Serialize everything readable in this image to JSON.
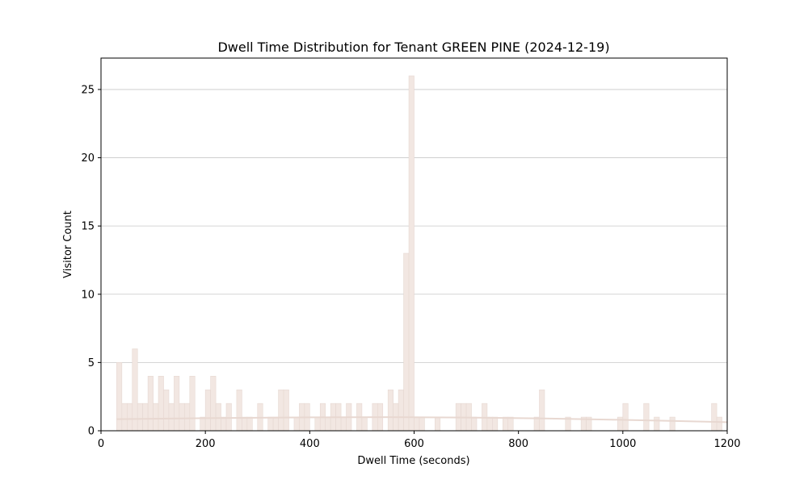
{
  "chart_data": {
    "type": "bar",
    "title": "Dwell Time Distribution for Tenant GREEN PINE (2024-12-19)",
    "xlabel": "Dwell Time (seconds)",
    "ylabel": "Visitor Count",
    "xlim": [
      0,
      1200
    ],
    "ylim": [
      0,
      27.3
    ],
    "xticks": [
      0,
      200,
      400,
      600,
      800,
      1000,
      1200
    ],
    "yticks": [
      0,
      5,
      10,
      15,
      20,
      25
    ],
    "grid": "horizontal",
    "bin_width": 10,
    "bar_color": "#f2e7e2",
    "bar_edge_color": "#e6d8d2",
    "trend_color": "#e8d8d1",
    "grid_color": "#c8c8c8",
    "bins": [
      {
        "x": 30,
        "y": 5
      },
      {
        "x": 40,
        "y": 2
      },
      {
        "x": 50,
        "y": 2
      },
      {
        "x": 60,
        "y": 6
      },
      {
        "x": 70,
        "y": 2
      },
      {
        "x": 80,
        "y": 2
      },
      {
        "x": 90,
        "y": 4
      },
      {
        "x": 100,
        "y": 2
      },
      {
        "x": 110,
        "y": 4
      },
      {
        "x": 120,
        "y": 3
      },
      {
        "x": 130,
        "y": 2
      },
      {
        "x": 140,
        "y": 4
      },
      {
        "x": 150,
        "y": 2
      },
      {
        "x": 160,
        "y": 2
      },
      {
        "x": 170,
        "y": 4
      },
      {
        "x": 190,
        "y": 1
      },
      {
        "x": 200,
        "y": 3
      },
      {
        "x": 210,
        "y": 4
      },
      {
        "x": 220,
        "y": 2
      },
      {
        "x": 230,
        "y": 1
      },
      {
        "x": 240,
        "y": 2
      },
      {
        "x": 260,
        "y": 3
      },
      {
        "x": 270,
        "y": 1
      },
      {
        "x": 280,
        "y": 1
      },
      {
        "x": 300,
        "y": 2
      },
      {
        "x": 320,
        "y": 1
      },
      {
        "x": 330,
        "y": 1
      },
      {
        "x": 340,
        "y": 3
      },
      {
        "x": 350,
        "y": 3
      },
      {
        "x": 370,
        "y": 1
      },
      {
        "x": 380,
        "y": 2
      },
      {
        "x": 390,
        "y": 2
      },
      {
        "x": 410,
        "y": 1
      },
      {
        "x": 420,
        "y": 2
      },
      {
        "x": 430,
        "y": 1
      },
      {
        "x": 440,
        "y": 2
      },
      {
        "x": 450,
        "y": 2
      },
      {
        "x": 460,
        "y": 1
      },
      {
        "x": 470,
        "y": 2
      },
      {
        "x": 490,
        "y": 2
      },
      {
        "x": 500,
        "y": 1
      },
      {
        "x": 520,
        "y": 2
      },
      {
        "x": 530,
        "y": 2
      },
      {
        "x": 550,
        "y": 3
      },
      {
        "x": 560,
        "y": 2
      },
      {
        "x": 570,
        "y": 3
      },
      {
        "x": 580,
        "y": 13
      },
      {
        "x": 590,
        "y": 26
      },
      {
        "x": 600,
        "y": 1
      },
      {
        "x": 610,
        "y": 1
      },
      {
        "x": 640,
        "y": 1
      },
      {
        "x": 680,
        "y": 2
      },
      {
        "x": 690,
        "y": 2
      },
      {
        "x": 700,
        "y": 2
      },
      {
        "x": 710,
        "y": 1
      },
      {
        "x": 730,
        "y": 2
      },
      {
        "x": 740,
        "y": 1
      },
      {
        "x": 750,
        "y": 1
      },
      {
        "x": 770,
        "y": 1
      },
      {
        "x": 780,
        "y": 1
      },
      {
        "x": 830,
        "y": 1
      },
      {
        "x": 840,
        "y": 3
      },
      {
        "x": 890,
        "y": 1
      },
      {
        "x": 920,
        "y": 1
      },
      {
        "x": 930,
        "y": 1
      },
      {
        "x": 990,
        "y": 1
      },
      {
        "x": 1000,
        "y": 2
      },
      {
        "x": 1040,
        "y": 2
      },
      {
        "x": 1060,
        "y": 1
      },
      {
        "x": 1090,
        "y": 1
      },
      {
        "x": 1170,
        "y": 2
      },
      {
        "x": 1180,
        "y": 1
      }
    ],
    "trend_line": [
      {
        "x": 30,
        "y": 0.85
      },
      {
        "x": 200,
        "y": 0.92
      },
      {
        "x": 400,
        "y": 0.98
      },
      {
        "x": 550,
        "y": 1.0
      },
      {
        "x": 700,
        "y": 0.97
      },
      {
        "x": 850,
        "y": 0.9
      },
      {
        "x": 1000,
        "y": 0.8
      },
      {
        "x": 1100,
        "y": 0.72
      },
      {
        "x": 1200,
        "y": 0.63
      }
    ]
  }
}
